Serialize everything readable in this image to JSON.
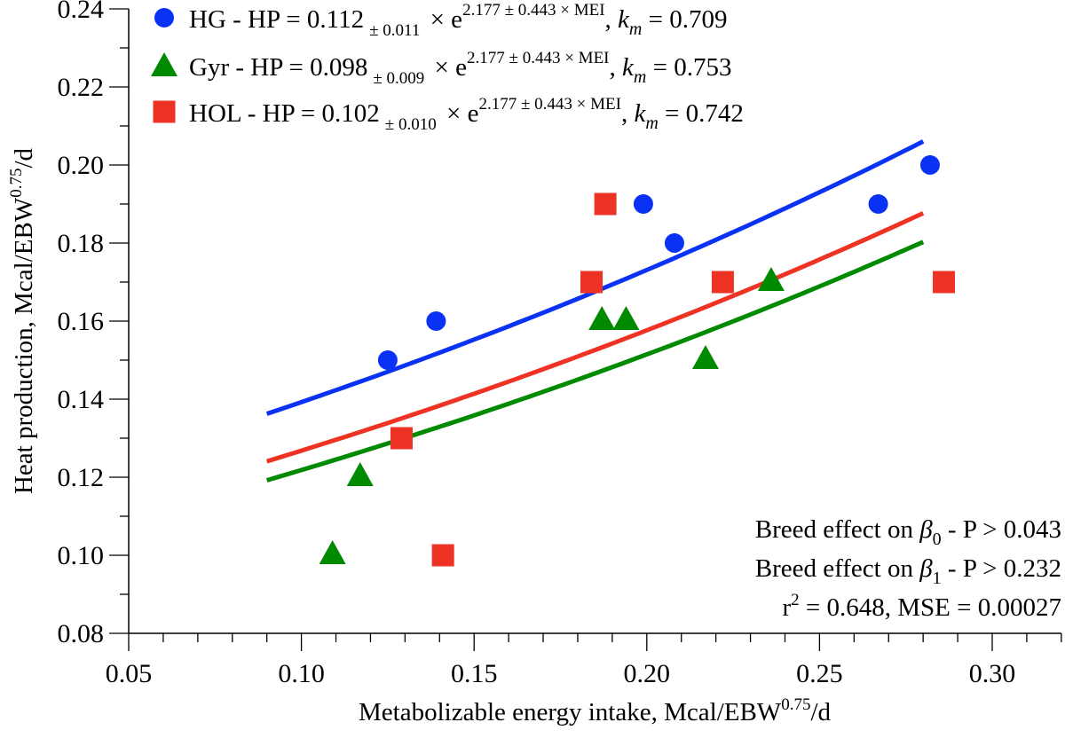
{
  "chart_data": {
    "type": "scatter",
    "title": "",
    "xlabel": {
      "text": "Metabolizable energy intake, Mcal/EBW",
      "sup": "0.75",
      "suffix": "/d"
    },
    "ylabel": {
      "text": "Heat production, Mcal/EBW",
      "sup": "0.75",
      "suffix": "/d"
    },
    "xlim": [
      0.05,
      0.32
    ],
    "ylim": [
      0.08,
      0.24
    ],
    "xticks": [
      "0.05",
      "0.10",
      "0.15",
      "0.20",
      "0.25",
      "0.30"
    ],
    "yticks": [
      "0.08",
      "0.10",
      "0.12",
      "0.14",
      "0.16",
      "0.18",
      "0.20",
      "0.22",
      "0.24"
    ],
    "grid": false,
    "legend_position": "top-left",
    "series": [
      {
        "name": "HG",
        "marker": "circle",
        "color": "#0a32f5",
        "equation": {
          "prefix": "HG - HP = ",
          "b0": "0.112",
          "b0_se": "± 0.011",
          "exp": "2.177 ± 0.443 × MEI",
          "km": "0.709"
        },
        "b0_value": 0.112,
        "b1_value": 2.177,
        "fit_range": [
          0.09,
          0.28
        ],
        "points": [
          [
            0.125,
            0.15
          ],
          [
            0.139,
            0.16
          ],
          [
            0.199,
            0.19
          ],
          [
            0.208,
            0.18
          ],
          [
            0.267,
            0.19
          ],
          [
            0.282,
            0.2
          ]
        ]
      },
      {
        "name": "Gyr",
        "marker": "triangle",
        "color": "#008a00",
        "equation": {
          "prefix": "Gyr  - HP = ",
          "b0": "0.098",
          "b0_se": "± 0.009",
          "exp": "2.177 ± 0.443 × MEI",
          "km": "0.753"
        },
        "b0_value": 0.098,
        "b1_value": 2.177,
        "fit_range": [
          0.09,
          0.28
        ],
        "points": [
          [
            0.109,
            0.1
          ],
          [
            0.117,
            0.12
          ],
          [
            0.187,
            0.16
          ],
          [
            0.194,
            0.16
          ],
          [
            0.217,
            0.15
          ],
          [
            0.236,
            0.17
          ]
        ]
      },
      {
        "name": "HOL",
        "marker": "square",
        "color": "#ee3224",
        "equation": {
          "prefix": "HOL - HP = ",
          "b0": "0.102",
          "b0_se": "± 0.010",
          "exp": "2.177 ± 0.443 × MEI",
          "km": "0.742"
        },
        "b0_value": 0.102,
        "b1_value": 2.177,
        "fit_range": [
          0.09,
          0.28
        ],
        "points": [
          [
            0.129,
            0.13
          ],
          [
            0.141,
            0.1
          ],
          [
            0.184,
            0.17
          ],
          [
            0.188,
            0.19
          ],
          [
            0.222,
            0.17
          ],
          [
            0.286,
            0.17
          ]
        ]
      }
    ],
    "annotations": [
      {
        "pre": "Breed effect on ",
        "sym": "β",
        "sub": "0",
        "post": " - P > 0.043"
      },
      {
        "pre": "Breed effect on ",
        "sym": "β",
        "sub": "1",
        "post": " - P > 0.232"
      },
      {
        "pre": "r",
        "sup": "2",
        "post": " = 0.648, MSE = 0.00027"
      }
    ],
    "km_symbol": {
      "k": "k",
      "sub": "m"
    }
  }
}
